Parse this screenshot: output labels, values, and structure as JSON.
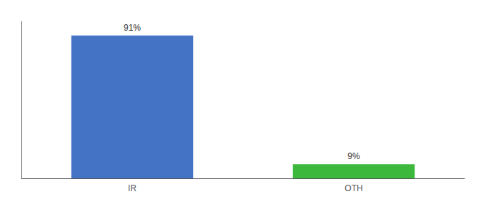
{
  "chart_data": {
    "type": "bar",
    "categories": [
      "IR",
      "OTH"
    ],
    "values": [
      91,
      9
    ],
    "value_labels": [
      "91%",
      "9%"
    ],
    "data_labels": true,
    "colors": [
      "#4472c4",
      "#3cb83c"
    ],
    "ylim": [
      0,
      100
    ],
    "tick_labels": "x",
    "grid": false
  }
}
